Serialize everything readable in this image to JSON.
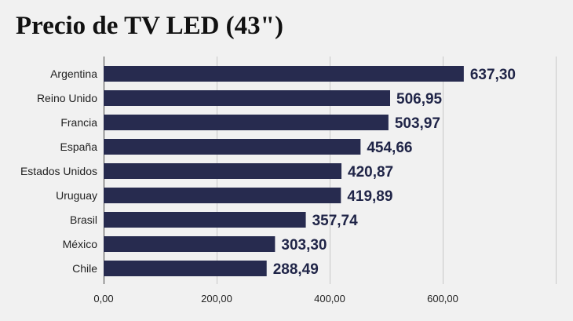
{
  "title": "Precio de TV LED (43\")",
  "chart_data": {
    "type": "bar",
    "orientation": "horizontal",
    "title": "Precio de TV LED (43\")",
    "xlabel": "",
    "ylabel": "",
    "categories": [
      "Argentina",
      "Reino Unido",
      "Francia",
      "España",
      "Estados Unidos",
      "Uruguay",
      "Brasil",
      "México",
      "Chile"
    ],
    "values": [
      637.3,
      506.95,
      503.97,
      454.66,
      420.87,
      419.89,
      357.74,
      303.3,
      288.49
    ],
    "value_labels": [
      "637,30",
      "506,95",
      "503,97",
      "454,66",
      "420,87",
      "419,89",
      "357,74",
      "303,30",
      "288,49"
    ],
    "xlim": [
      0,
      800
    ],
    "xticks": [
      0,
      200,
      400,
      600
    ],
    "xtick_labels": [
      "0,00",
      "200,00",
      "400,00",
      "600,00"
    ],
    "grid": true,
    "legend": "none",
    "bar_color": "#272b4f",
    "background_color": "#f1f1f1"
  }
}
